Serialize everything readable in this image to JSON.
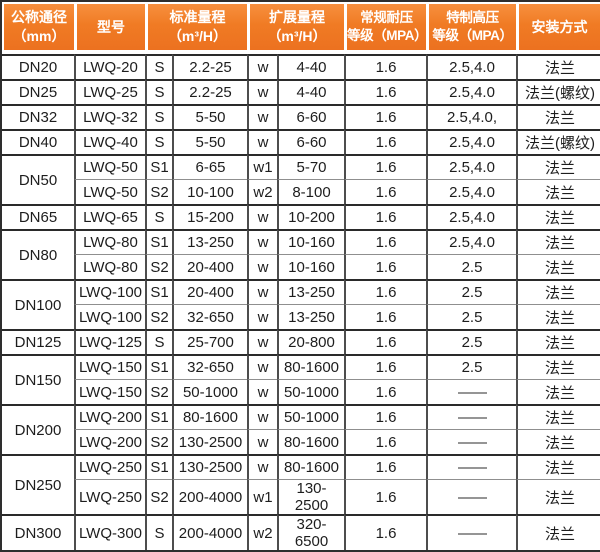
{
  "colors": {
    "header_orange": "#f07b24",
    "header_orange_light": "#f78f3e",
    "header_text": "#ffffff",
    "outer_border": "#2e2e2e",
    "group_border": "#2a2a2a",
    "subrow_border": "#8f8f8f",
    "column_border": "#4d4d4d",
    "body_text": "#1d1d1d"
  },
  "table": {
    "headers": [
      "公称通径\n（mm）",
      "型号",
      "标准量程\n（m³/H）",
      "扩展量程\n（m³/H）",
      "常规耐压\n等级（MPA）",
      "特制高压\n等级（MPA）",
      "安装方式"
    ],
    "rows": [
      {
        "dn": "DN20",
        "span": 1,
        "model": "LWQ-20",
        "s": "S",
        "std": "2.2-25",
        "w": "w",
        "ext": "4-40",
        "mpa": "1.6",
        "hp": "2.5,4.0",
        "install": "法兰"
      },
      {
        "dn": "DN25",
        "span": 1,
        "model": "LWQ-25",
        "s": "S",
        "std": "2.2-25",
        "w": "w",
        "ext": "4-40",
        "mpa": "1.6",
        "hp": "2.5,4.0",
        "install": "法兰(螺纹)"
      },
      {
        "dn": "DN32",
        "span": 1,
        "model": "LWQ-32",
        "s": "S",
        "std": "5-50",
        "w": "w",
        "ext": "6-60",
        "mpa": "1.6",
        "hp": "2.5,4.0,",
        "install": "法兰"
      },
      {
        "dn": "DN40",
        "span": 1,
        "model": "LWQ-40",
        "s": "S",
        "std": "5-50",
        "w": "w",
        "ext": "6-60",
        "mpa": "1.6",
        "hp": "2.5,4.0",
        "install": "法兰(螺纹)"
      },
      {
        "dn": "DN50",
        "span": 2,
        "model": "LWQ-50",
        "s": "S1",
        "std": "6-65",
        "w": "w1",
        "ext": "5-70",
        "mpa": "1.6",
        "hp": "2.5,4.0",
        "install": "法兰"
      },
      {
        "dn": null,
        "model": "LWQ-50",
        "s": "S2",
        "std": "10-100",
        "w": "w2",
        "ext": "8-100",
        "mpa": "1.6",
        "hp": "2.5,4.0",
        "install": "法兰"
      },
      {
        "dn": "DN65",
        "span": 1,
        "model": "LWQ-65",
        "s": "S",
        "std": "15-200",
        "w": "w",
        "ext": "10-200",
        "mpa": "1.6",
        "hp": "2.5,4.0",
        "install": "法兰"
      },
      {
        "dn": "DN80",
        "span": 2,
        "model": "LWQ-80",
        "s": "S1",
        "std": "13-250",
        "w": "w",
        "ext": "10-160",
        "mpa": "1.6",
        "hp": "2.5,4.0",
        "install": "法兰"
      },
      {
        "dn": null,
        "model": "LWQ-80",
        "s": "S2",
        "std": "20-400",
        "w": "w",
        "ext": "10-160",
        "mpa": "1.6",
        "hp": "2.5",
        "install": "法兰"
      },
      {
        "dn": "DN100",
        "span": 2,
        "model": "LWQ-100",
        "s": "S1",
        "std": "20-400",
        "w": "w",
        "ext": "13-250",
        "mpa": "1.6",
        "hp": "2.5",
        "install": "法兰"
      },
      {
        "dn": null,
        "model": "LWQ-100",
        "s": "S2",
        "std": "32-650",
        "w": "w",
        "ext": "13-250",
        "mpa": "1.6",
        "hp": "2.5",
        "install": "法兰"
      },
      {
        "dn": "DN125",
        "span": 1,
        "model": "LWQ-125",
        "s": "S",
        "std": "25-700",
        "w": "w",
        "ext": "20-800",
        "mpa": "1.6",
        "hp": "2.5",
        "install": "法兰"
      },
      {
        "dn": "DN150",
        "span": 2,
        "model": "LWQ-150",
        "s": "S1",
        "std": "32-650",
        "w": "w",
        "ext": "80-1600",
        "mpa": "1.6",
        "hp": "2.5",
        "install": "法兰"
      },
      {
        "dn": null,
        "model": "LWQ-150",
        "s": "S2",
        "std": "50-1000",
        "w": "w",
        "ext": "50-1000",
        "mpa": "1.6",
        "hp": "——",
        "install": "法兰"
      },
      {
        "dn": "DN200",
        "span": 2,
        "model": "LWQ-200",
        "s": "S1",
        "std": "80-1600",
        "w": "w",
        "ext": "50-1000",
        "mpa": "1.6",
        "hp": "——",
        "install": "法兰"
      },
      {
        "dn": null,
        "model": "LWQ-200",
        "s": "S2",
        "std": "130-2500",
        "w": "w",
        "ext": "80-1600",
        "mpa": "1.6",
        "hp": "——",
        "install": "法兰"
      },
      {
        "dn": "DN250",
        "span": 2,
        "model": "LWQ-250",
        "s": "S1",
        "std": "130-2500",
        "w": "w",
        "ext": "80-1600",
        "mpa": "1.6",
        "hp": "——",
        "install": "法兰"
      },
      {
        "dn": null,
        "model": "LWQ-250",
        "s": "S2",
        "std": "200-4000",
        "w": "w1",
        "ext": "130-2500",
        "mpa": "1.6",
        "hp": "——",
        "install": "法兰"
      },
      {
        "dn": "DN300",
        "span": 1,
        "model": "LWQ-300",
        "s": "S",
        "std": "200-4000",
        "w": "w2",
        "ext": "320-6500",
        "mpa": "1.6",
        "hp": "——",
        "install": "法兰"
      }
    ]
  }
}
